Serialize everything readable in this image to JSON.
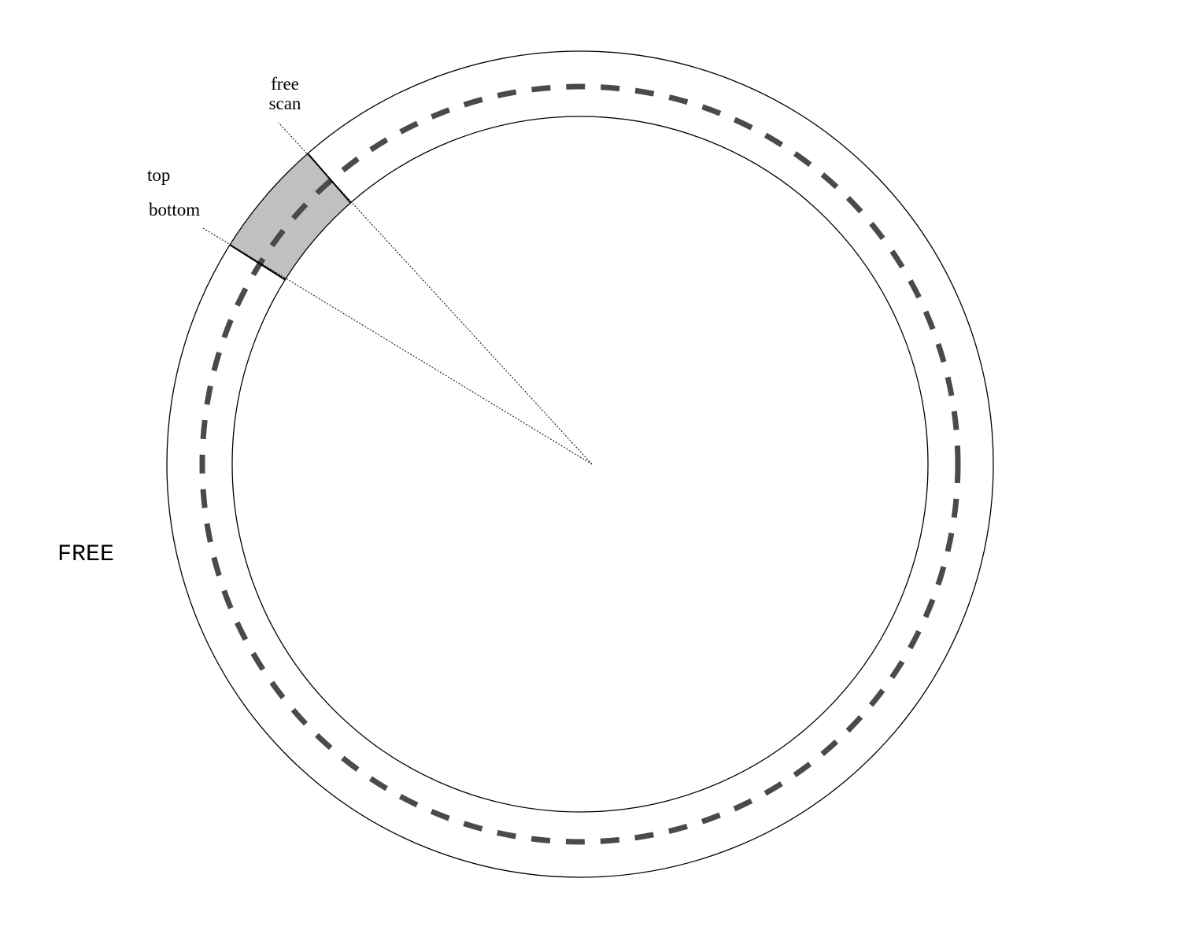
{
  "diagram": {
    "title_label": "FREE",
    "labels": {
      "free": "free",
      "scan": "scan",
      "top": "top",
      "bottom": "bottom"
    },
    "colors": {
      "ring_stroke": "#000000",
      "dashed_track": "#4a4a4a",
      "shaded_region": "#c0c0c0",
      "pointer_line": "#000000",
      "background": "#ffffff"
    }
  }
}
